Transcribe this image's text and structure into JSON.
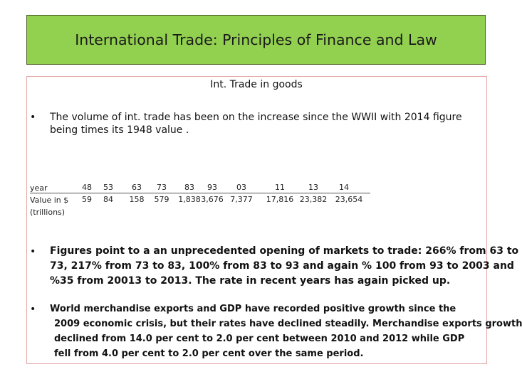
{
  "slide": {
    "title": "International Trade: Principles of  Finance  and Law",
    "subtitle": "Int. Trade in goods"
  },
  "bullets": [
    {
      "symbol": "•",
      "lines": [
        "The volume of int. trade  has been on the increase since the WWII  with 2014 figure",
        "being  times its 1948  value ."
      ]
    },
    {
      "symbol": "•",
      "lines": [
        "Figures point to a an unprecedented opening of markets  to trade: 266% from 63 to",
        "73,  217% from 73 to 83,  100% from 83 to 93  and again % 100 from 93 to 2003 and",
        "%35 from 20013 to 2013.  The rate in recent years has again picked up."
      ]
    },
    {
      "symbol": "•",
      "lines": [
        "World merchandise exports and GDP have recorded positive growth since the",
        "2009 economic crisis, but their rates have declined steadily. Merchandise exports growth",
        "declined from 14.0 per cent to 2.0 per cent between 2010 and 2012 while GDP",
        "fell from 4.0 per cent to 2.0 per cent over the same period."
      ]
    }
  ],
  "table": {
    "row_labels": [
      "year",
      "Value in $",
      "(trillions)"
    ],
    "years": [
      "48",
      "53",
      "63",
      "73",
      "83",
      "93",
      "03",
      "11",
      "13",
      "14"
    ],
    "values": [
      "59",
      "84",
      "158",
      "579",
      "1,838",
      "3,676",
      "7,377",
      "17,816",
      "23,382",
      "23,654"
    ]
  },
  "colors": {
    "title_bg": "#92d050",
    "content_border": "#e6a6a6"
  }
}
